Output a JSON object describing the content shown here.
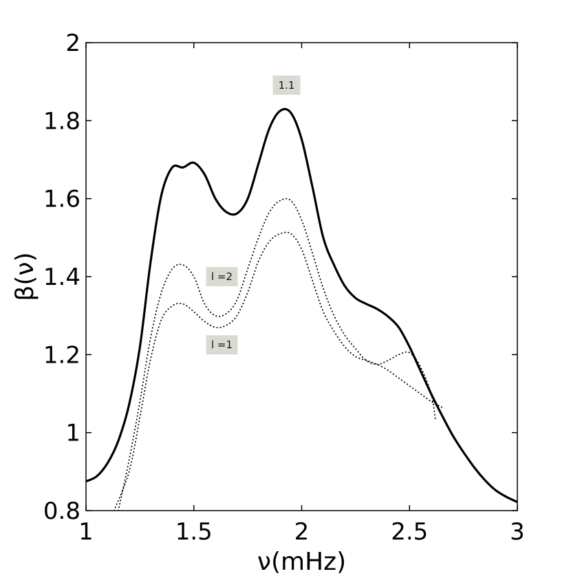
{
  "chart_data": {
    "type": "line",
    "xlabel": "ν(mHz)",
    "ylabel": "β(ν)",
    "xlim": [
      1,
      3
    ],
    "ylim": [
      0.8,
      2
    ],
    "xticks": [
      "1",
      "1.5",
      "2",
      "2.5",
      "3"
    ],
    "yticks": [
      "0.8",
      "1",
      "1.2",
      "1.4",
      "1.6",
      "1.8",
      "2"
    ],
    "grid": false,
    "annotations": [
      {
        "text": "1.1",
        "x": 1.93,
        "y": 1.891
      },
      {
        "text": "l =2",
        "x": 1.63,
        "y": 1.4
      },
      {
        "text": "l =1",
        "x": 1.63,
        "y": 1.225
      }
    ],
    "series": [
      {
        "style": "solid",
        "x": [
          1.0,
          1.05,
          1.1,
          1.15,
          1.2,
          1.25,
          1.3,
          1.35,
          1.4,
          1.45,
          1.5,
          1.55,
          1.6,
          1.65,
          1.7,
          1.75,
          1.8,
          1.85,
          1.9,
          1.95,
          2.0,
          2.05,
          2.1,
          2.15,
          2.2,
          2.25,
          2.3,
          2.35,
          2.4,
          2.45,
          2.5,
          2.55,
          2.6,
          2.65,
          2.7,
          2.75,
          2.8,
          2.85,
          2.9,
          2.95,
          3.0
        ],
        "y": [
          0.875,
          0.888,
          0.922,
          0.979,
          1.072,
          1.22,
          1.44,
          1.61,
          1.68,
          1.68,
          1.692,
          1.662,
          1.6,
          1.566,
          1.562,
          1.6,
          1.69,
          1.78,
          1.825,
          1.82,
          1.752,
          1.63,
          1.5,
          1.43,
          1.376,
          1.345,
          1.33,
          1.317,
          1.298,
          1.27,
          1.22,
          1.16,
          1.1,
          1.045,
          0.993,
          0.95,
          0.911,
          0.878,
          0.852,
          0.835,
          0.822
        ]
      },
      {
        "name": "l =2",
        "style": "dotted",
        "x": [
          1.15,
          1.2,
          1.25,
          1.3,
          1.35,
          1.4,
          1.45,
          1.5,
          1.55,
          1.6,
          1.65,
          1.7,
          1.75,
          1.8,
          1.85,
          1.9,
          1.95,
          2.0,
          2.05,
          2.1,
          2.15,
          2.2,
          2.25,
          2.3,
          2.35,
          2.4,
          2.45,
          2.5,
          2.55,
          2.6,
          2.62
        ],
        "y": [
          0.8,
          0.93,
          1.08,
          1.245,
          1.36,
          1.42,
          1.43,
          1.4,
          1.33,
          1.3,
          1.305,
          1.34,
          1.42,
          1.5,
          1.565,
          1.595,
          1.595,
          1.545,
          1.46,
          1.37,
          1.3,
          1.25,
          1.215,
          1.185,
          1.175,
          1.185,
          1.2,
          1.205,
          1.17,
          1.1,
          1.035
        ]
      },
      {
        "name": "l =1",
        "style": "dotted",
        "x": [
          1.13,
          1.2,
          1.25,
          1.3,
          1.35,
          1.4,
          1.45,
          1.5,
          1.55,
          1.6,
          1.65,
          1.7,
          1.75,
          1.8,
          1.85,
          1.9,
          1.95,
          2.0,
          2.05,
          2.1,
          2.15,
          2.2,
          2.25,
          2.3,
          2.35,
          2.4,
          2.45,
          2.5,
          2.55,
          2.6,
          2.65
        ],
        "y": [
          0.8,
          0.9,
          1.04,
          1.19,
          1.29,
          1.325,
          1.33,
          1.31,
          1.285,
          1.27,
          1.275,
          1.3,
          1.36,
          1.44,
          1.49,
          1.51,
          1.51,
          1.47,
          1.39,
          1.31,
          1.26,
          1.22,
          1.195,
          1.185,
          1.175,
          1.16,
          1.14,
          1.12,
          1.1,
          1.08,
          1.065
        ]
      }
    ]
  }
}
